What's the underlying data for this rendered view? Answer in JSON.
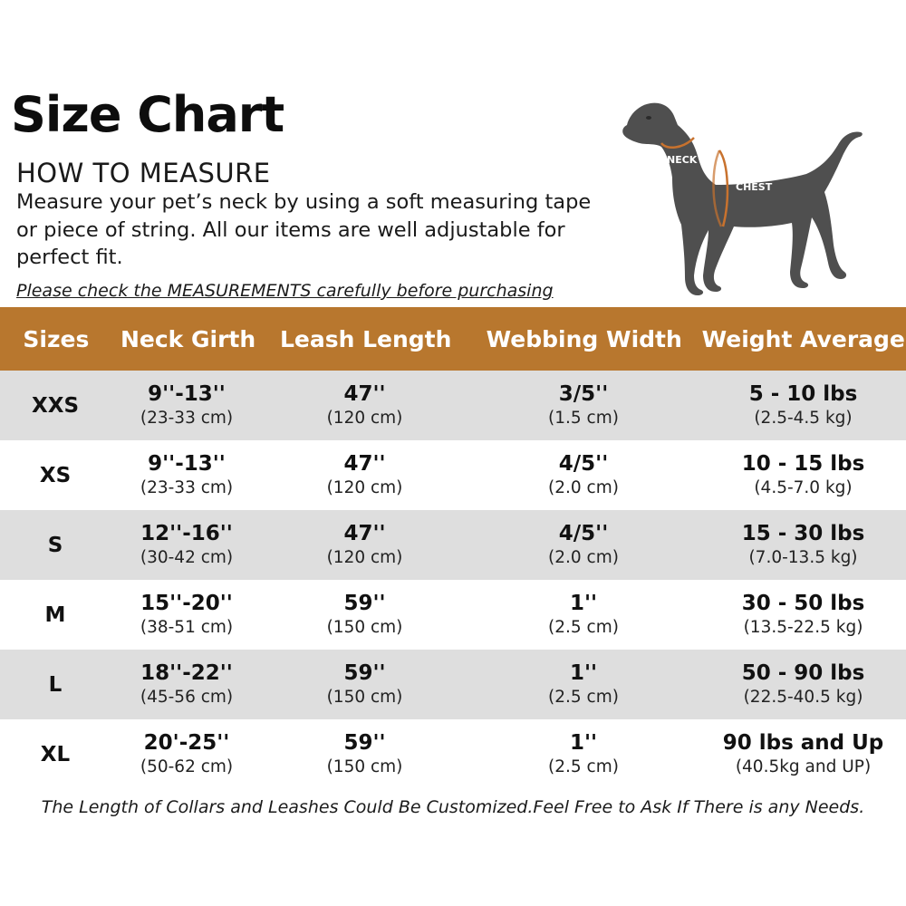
{
  "header": {
    "title": "Size Chart",
    "subtitle": "HOW TO MEASURE",
    "description": "Measure your pet’s neck by using a soft measuring tape or piece of string. All our items are well adjustable for perfect fit.",
    "note": "Please check the MEASUREMENTS carefully before purchasing"
  },
  "diagram": {
    "neck_label": "NECK",
    "chest_label": "CHEST",
    "dog_color": "#4f4f4f",
    "measure_line_color": "#c8722e"
  },
  "colors": {
    "header_band": "#b8772e",
    "shaded_row": "#dedede"
  },
  "table": {
    "columns": [
      "Sizes",
      "Neck Girth",
      "Leash Length",
      "Webbing Width",
      "Weight Average"
    ],
    "rows": [
      {
        "size": "XXS",
        "neck": "9''-13''",
        "neck_cm": "(23-33 cm)",
        "leash": "47''",
        "leash_cm": "(120 cm)",
        "webbing": "3/5''",
        "webbing_cm": "(1.5 cm)",
        "weight": "5 - 10 lbs",
        "weight_kg": "(2.5-4.5 kg)"
      },
      {
        "size": "XS",
        "neck": "9''-13''",
        "neck_cm": "(23-33 cm)",
        "leash": "47''",
        "leash_cm": "(120 cm)",
        "webbing": "4/5''",
        "webbing_cm": "(2.0 cm)",
        "weight": "10 - 15 lbs",
        "weight_kg": "(4.5-7.0 kg)"
      },
      {
        "size": "S",
        "neck": "12''-16''",
        "neck_cm": "(30-42 cm)",
        "leash": "47''",
        "leash_cm": "(120 cm)",
        "webbing": "4/5''",
        "webbing_cm": "(2.0 cm)",
        "weight": "15 - 30 lbs",
        "weight_kg": "(7.0-13.5 kg)"
      },
      {
        "size": "M",
        "neck": "15''-20''",
        "neck_cm": "(38-51 cm)",
        "leash": "59''",
        "leash_cm": "(150 cm)",
        "webbing": "1''",
        "webbing_cm": "(2.5 cm)",
        "weight": "30 - 50 lbs",
        "weight_kg": "(13.5-22.5 kg)"
      },
      {
        "size": "L",
        "neck": "18''-22''",
        "neck_cm": "(45-56 cm)",
        "leash": "59''",
        "leash_cm": "(150 cm)",
        "webbing": "1''",
        "webbing_cm": "(2.5 cm)",
        "weight": "50 - 90 lbs",
        "weight_kg": "(22.5-40.5 kg)"
      },
      {
        "size": "XL",
        "neck": "20'-25''",
        "neck_cm": "(50-62 cm)",
        "leash": "59''",
        "leash_cm": "(150 cm)",
        "webbing": "1''",
        "webbing_cm": "(2.5 cm)",
        "weight": "90 lbs and Up",
        "weight_kg": "(40.5kg and UP)"
      }
    ]
  },
  "footer": {
    "text": "The Length of Collars and Leashes Could Be Customized.Feel Free to Ask If There is any Needs."
  }
}
